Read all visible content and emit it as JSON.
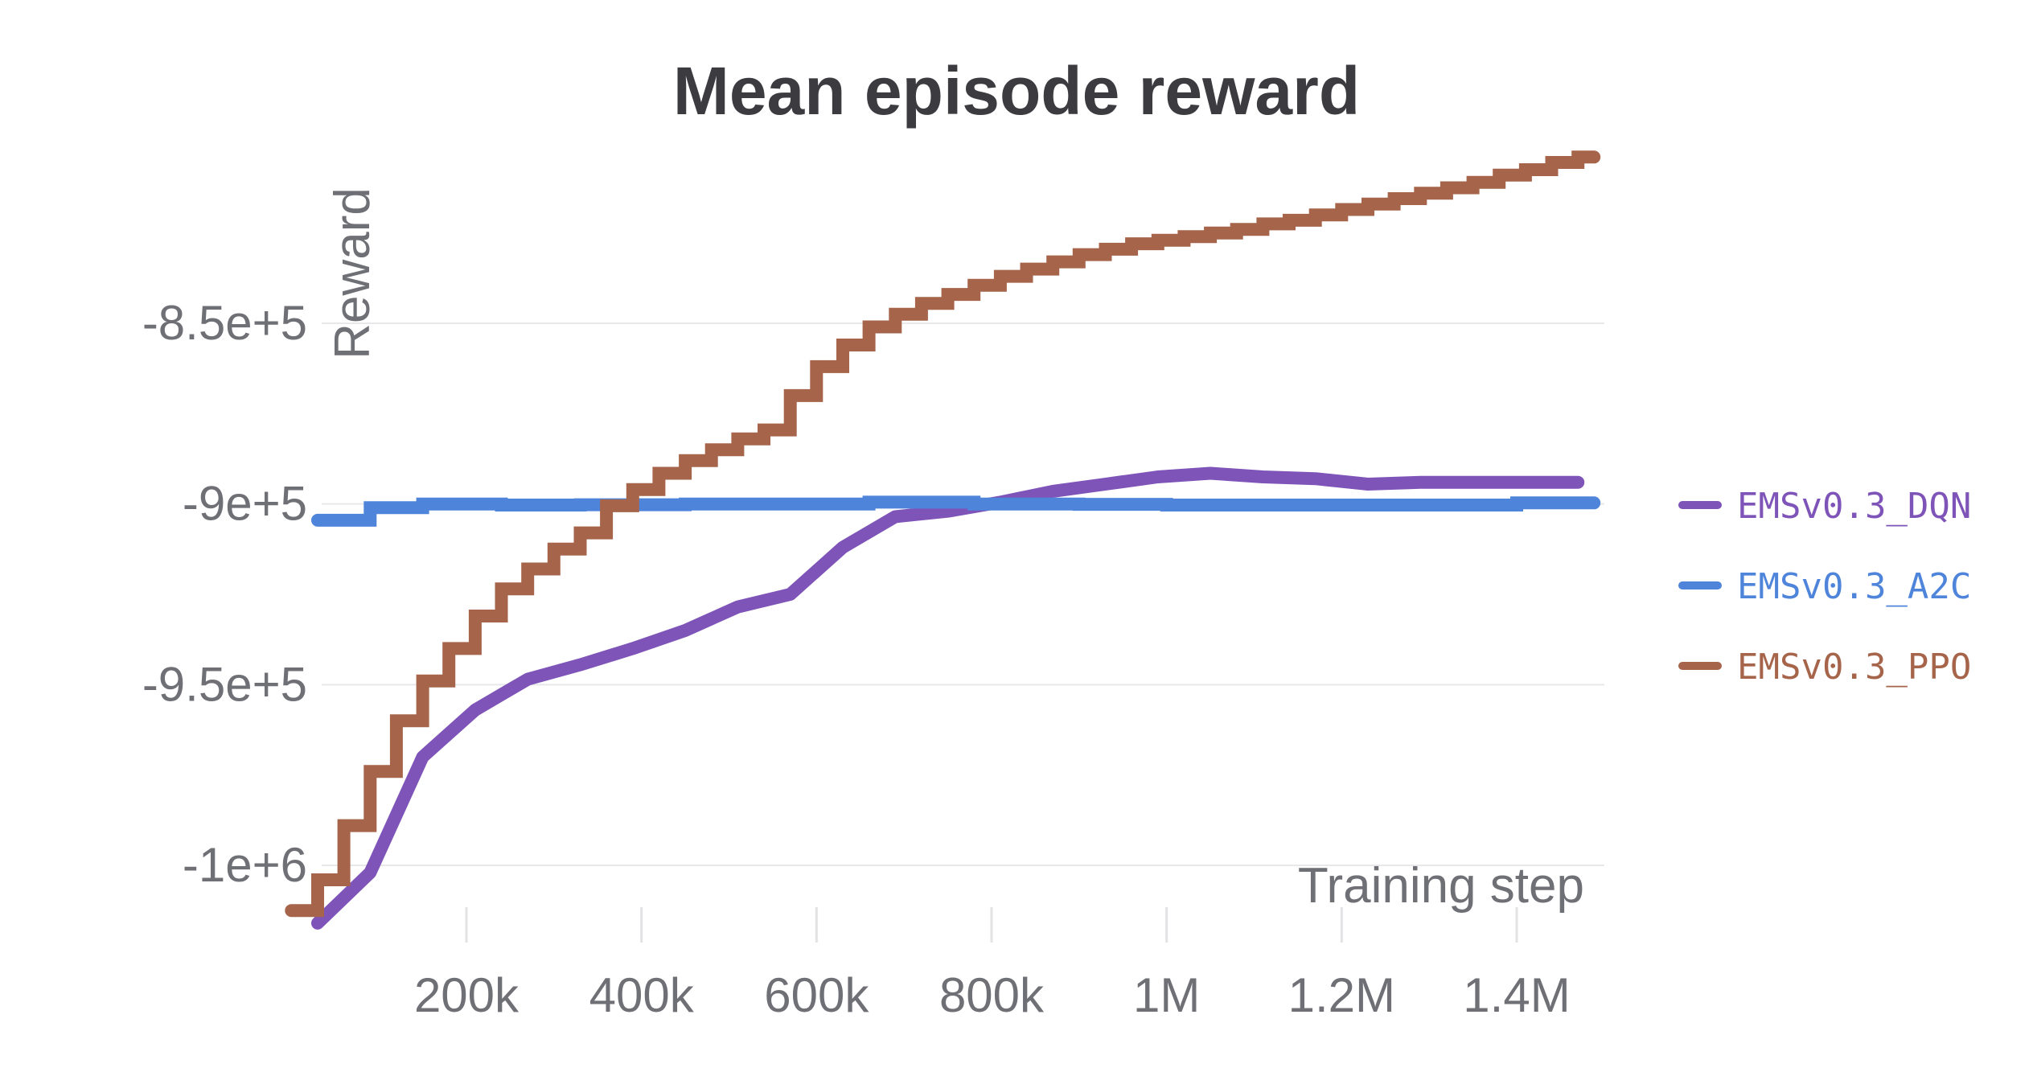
{
  "chart_data": {
    "type": "line",
    "title": "Mean episode reward",
    "xlabel": "Training step",
    "ylabel": "Reward",
    "xlim": [
      0,
      1500000
    ],
    "ylim": [
      -1013000,
      -730000
    ],
    "x_ticks": [
      {
        "value": 200000,
        "label": "200k"
      },
      {
        "value": 400000,
        "label": "400k"
      },
      {
        "value": 600000,
        "label": "600k"
      },
      {
        "value": 800000,
        "label": "800k"
      },
      {
        "value": 1000000,
        "label": "1M"
      },
      {
        "value": 1200000,
        "label": "1.2M"
      },
      {
        "value": 1400000,
        "label": "1.4M"
      }
    ],
    "y_ticks": [
      {
        "value": -850000,
        "label": "-8.5e+5"
      },
      {
        "value": -900000,
        "label": "-9e+5"
      },
      {
        "value": -950000,
        "label": "-9.5e+5"
      },
      {
        "value": -1000000,
        "label": "-1e+6"
      }
    ],
    "grid": true,
    "legend_position": "right",
    "series": [
      {
        "name": "EMSv0.3_DQN",
        "color": "#7e54b8",
        "step": false,
        "x": [
          30000,
          90000,
          150000,
          210000,
          270000,
          330000,
          390000,
          450000,
          510000,
          570000,
          630000,
          690000,
          750000,
          810000,
          870000,
          930000,
          990000,
          1050000,
          1110000,
          1170000,
          1230000,
          1290000,
          1350000,
          1410000,
          1470000
        ],
        "y": [
          -1016000,
          -1002000,
          -970000,
          -957000,
          -948500,
          -944500,
          -940000,
          -935000,
          -928500,
          -925000,
          -912000,
          -903500,
          -902000,
          -899500,
          -896500,
          -894500,
          -892500,
          -891500,
          -892500,
          -893000,
          -894500,
          -894000,
          -894000,
          -894000,
          -894000
        ]
      },
      {
        "name": "EMSv0.3_A2C",
        "color": "#4e85db",
        "step": true,
        "x": [
          30000,
          90000,
          150000,
          240000,
          330000,
          450000,
          540000,
          630000,
          660000,
          780000,
          900000,
          1000000,
          1200000,
          1350000,
          1400000,
          1470000
        ],
        "y": [
          -904500,
          -901000,
          -900000,
          -900300,
          -900200,
          -900000,
          -900000,
          -900000,
          -899500,
          -900000,
          -900100,
          -900300,
          -900300,
          -900300,
          -899700,
          -899700
        ]
      },
      {
        "name": "EMSv0.3_PPO",
        "color": "#a6654a",
        "step": true,
        "x": [
          0,
          30000,
          60000,
          90000,
          120000,
          150000,
          180000,
          210000,
          240000,
          270000,
          300000,
          330000,
          360000,
          390000,
          420000,
          450000,
          480000,
          510000,
          540000,
          570000,
          600000,
          630000,
          660000,
          690000,
          720000,
          750000,
          780000,
          810000,
          840000,
          870000,
          900000,
          930000,
          960000,
          990000,
          1020000,
          1050000,
          1080000,
          1110000,
          1140000,
          1170000,
          1200000,
          1230000,
          1260000,
          1290000,
          1320000,
          1350000,
          1380000,
          1410000,
          1440000,
          1470000
        ],
        "y": [
          -1012500,
          -1004000,
          -989000,
          -974000,
          -960000,
          -949000,
          -940000,
          -931000,
          -923500,
          -918000,
          -912500,
          -908000,
          -900500,
          -896000,
          -891500,
          -888000,
          -885000,
          -882000,
          -879500,
          -870000,
          -862000,
          -856000,
          -851000,
          -847500,
          -844500,
          -842000,
          -839500,
          -837000,
          -835000,
          -833000,
          -831000,
          -829500,
          -828000,
          -827000,
          -826000,
          -825000,
          -824000,
          -822500,
          -821500,
          -820000,
          -818500,
          -817000,
          -815500,
          -814000,
          -812500,
          -811000,
          -809000,
          -807500,
          -805500,
          -804000
        ]
      }
    ]
  }
}
